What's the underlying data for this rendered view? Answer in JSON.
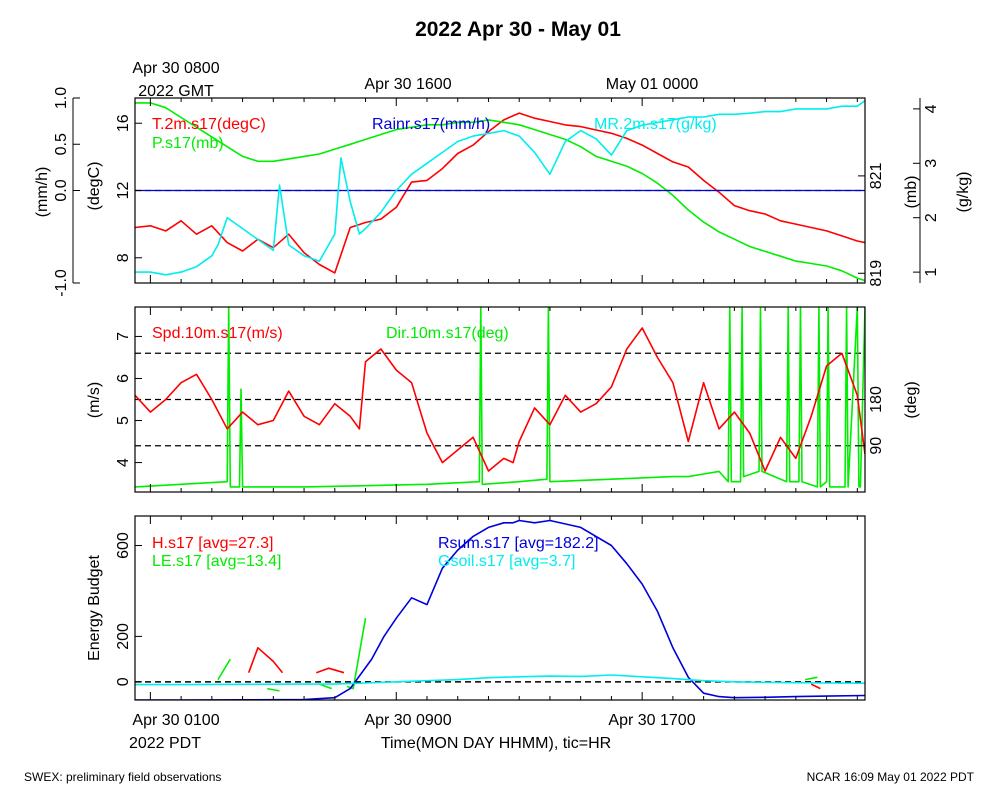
{
  "title": "2022 Apr 30 - May 01",
  "footer": {
    "left": "SWEX: preliminary field observations",
    "right": "NCAR 16:09 May 01 2022 PDT"
  },
  "top_time_axis": {
    "labels": [
      "Apr 30 0800",
      "Apr 30 1600",
      "May 01 0000"
    ],
    "start_suffix": "2022 GMT"
  },
  "bottom_time_axis": {
    "labels": [
      "Apr 30 0100",
      "Apr 30 0900",
      "Apr 30 1700"
    ],
    "start_suffix": "2022 PDT",
    "xlabel": "Time(MON DAY HHMM), tic=HR"
  },
  "colors": {
    "red": "#ff0000",
    "green": "#00ee00",
    "blue": "#0000dd",
    "cyan": "#00eeee",
    "axis": "#000000"
  },
  "chart_data": [
    {
      "type": "line",
      "panel": "top",
      "x_unit": "hours since Apr 30 0000 PDT",
      "xlim": [
        0.5,
        24.25
      ],
      "left_axes": [
        {
          "label": "(mm/h)",
          "ylim": [
            -1.0,
            1.0
          ],
          "ticks": [
            "-1.0",
            "0.0",
            "0.5",
            "1.0"
          ],
          "tick_values": [
            -1.0,
            0.0,
            0.5,
            1.0
          ]
        },
        {
          "label": "(degC)",
          "ylim": [
            6.5,
            17.5
          ],
          "ticks": [
            "8",
            "12",
            "16"
          ],
          "tick_values": [
            8,
            12,
            16
          ]
        }
      ],
      "right_axes": [
        {
          "label": "(mb)",
          "ylim": [
            818.8,
            822.6
          ],
          "ticks": [
            "819",
            "821"
          ],
          "tick_values": [
            819,
            821
          ]
        },
        {
          "label": "(g/kg)",
          "ylim": [
            0.8,
            4.2
          ],
          "ticks": [
            "1",
            "2",
            "3",
            "4"
          ],
          "tick_values": [
            1,
            2,
            3,
            4
          ]
        }
      ],
      "series": [
        {
          "name": "T.2m.s17(degC)",
          "color": "red",
          "axis": "(degC)",
          "x": [
            0.5,
            1,
            1.5,
            2,
            2.5,
            3,
            3.5,
            4,
            4.5,
            5,
            5.5,
            6,
            6.5,
            7,
            7.5,
            8,
            8.5,
            9,
            9.5,
            10,
            10.5,
            11,
            11.5,
            12,
            12.5,
            13,
            13.5,
            14,
            14.5,
            15,
            15.5,
            16,
            16.5,
            17,
            17.5,
            18,
            18.5,
            19,
            19.5,
            20,
            20.5,
            21,
            21.5,
            22,
            22.5,
            23,
            23.5,
            24,
            24.25
          ],
          "y": [
            9.8,
            9.9,
            9.6,
            10.2,
            9.4,
            9.9,
            8.9,
            8.4,
            9.1,
            8.6,
            9.4,
            8.3,
            7.6,
            7.1,
            9.8,
            10.1,
            10.3,
            11.0,
            12.5,
            12.6,
            13.3,
            14.2,
            14.7,
            15.5,
            16.2,
            16.6,
            16.3,
            16.1,
            15.9,
            15.8,
            15.6,
            15.4,
            15.1,
            14.7,
            14.2,
            13.7,
            13.4,
            12.6,
            11.9,
            11.1,
            10.8,
            10.6,
            10.2,
            10.0,
            9.8,
            9.6,
            9.3,
            9.0,
            8.9
          ]
        },
        {
          "name": "P.s17(mb)",
          "color": "green",
          "axis": "(mb)",
          "x": [
            0.5,
            1,
            1.5,
            2,
            2.5,
            3,
            3.5,
            4,
            4.5,
            5,
            5.5,
            6,
            6.5,
            7,
            7.5,
            8,
            8.5,
            9,
            9.5,
            10,
            10.5,
            11,
            11.5,
            12,
            12.5,
            13,
            13.5,
            14,
            14.5,
            15,
            15.5,
            16,
            16.5,
            17,
            17.5,
            18,
            18.5,
            19,
            19.5,
            20,
            20.5,
            21,
            21.5,
            22,
            22.5,
            23,
            23.5,
            24,
            24.25
          ],
          "y": [
            822.5,
            822.5,
            822.4,
            822.2,
            822.0,
            821.8,
            821.6,
            821.4,
            821.3,
            821.3,
            821.35,
            821.4,
            821.45,
            821.55,
            821.65,
            821.75,
            821.85,
            821.95,
            822.0,
            822.05,
            822.05,
            822.1,
            822.1,
            822.15,
            822.1,
            822.05,
            821.95,
            821.85,
            821.75,
            821.6,
            821.4,
            821.3,
            821.2,
            821.05,
            820.85,
            820.6,
            820.3,
            820.05,
            819.85,
            819.7,
            819.55,
            819.45,
            819.35,
            819.25,
            819.2,
            819.15,
            819.05,
            818.9,
            818.85
          ]
        },
        {
          "name": "Rainr.s17(mm/h)",
          "color": "blue",
          "axis": "(mm/h)",
          "x": [
            0.5,
            24.25
          ],
          "y": [
            0.0,
            0.0
          ]
        },
        {
          "name": "MR.2m.s17(g/kg)",
          "color": "cyan",
          "axis": "(g/kg)",
          "x": [
            0.5,
            1,
            1.5,
            2,
            2.5,
            3,
            3.2,
            3.5,
            4,
            4.5,
            5,
            5.2,
            5.5,
            6,
            6.5,
            7,
            7.2,
            7.5,
            7.8,
            8,
            8.5,
            9,
            9.5,
            10,
            10.5,
            11,
            11.5,
            12,
            12.5,
            13,
            13.5,
            14,
            14.5,
            15,
            15.5,
            16,
            16.5,
            17,
            17.5,
            18,
            18.5,
            19,
            19.5,
            20,
            20.5,
            21,
            21.5,
            22,
            22.5,
            23,
            23.5,
            24,
            24.25
          ],
          "y": [
            1.0,
            1.0,
            0.95,
            1.0,
            1.1,
            1.3,
            1.5,
            2.0,
            1.8,
            1.6,
            1.4,
            2.6,
            1.5,
            1.3,
            1.2,
            1.7,
            3.1,
            2.3,
            1.7,
            1.8,
            2.1,
            2.5,
            2.8,
            3.0,
            3.2,
            3.4,
            3.5,
            3.55,
            3.6,
            3.5,
            3.2,
            2.8,
            3.4,
            3.6,
            3.45,
            3.15,
            3.6,
            3.7,
            3.75,
            3.8,
            3.85,
            3.85,
            3.9,
            3.9,
            3.92,
            3.95,
            3.95,
            4.0,
            4.0,
            4.0,
            4.05,
            4.05,
            4.15
          ]
        }
      ]
    },
    {
      "type": "line",
      "panel": "middle",
      "x_unit": "hours since Apr 30 0000 PDT",
      "xlim": [
        0.5,
        24.25
      ],
      "left_axes": [
        {
          "label": "(m/s)",
          "ylim": [
            3.3,
            7.7
          ],
          "ticks": [
            "4",
            "5",
            "6",
            "7"
          ],
          "tick_values": [
            4,
            5,
            6,
            7
          ]
        }
      ],
      "right_axes": [
        {
          "label": "(deg)",
          "ylim": [
            0,
            360
          ],
          "ticks": [
            "90",
            "180"
          ],
          "tick_values": [
            90,
            180
          ]
        }
      ],
      "reference_lines_deg": [
        90,
        180,
        270
      ],
      "series": [
        {
          "name": "Spd.10m.s17(m/s)",
          "color": "red",
          "axis": "(m/s)",
          "x": [
            0.5,
            1,
            1.5,
            2,
            2.5,
            3,
            3.5,
            4,
            4.5,
            5,
            5.5,
            6,
            6.5,
            7,
            7.5,
            7.8,
            8,
            8.5,
            9,
            9.5,
            10,
            10.5,
            11,
            11.5,
            12,
            12.5,
            12.8,
            13,
            13.5,
            14,
            14.5,
            15,
            15.5,
            16,
            16.5,
            17,
            17.5,
            18,
            18.5,
            19,
            19.5,
            20,
            20.5,
            21,
            21.5,
            22,
            22.5,
            23,
            23.5,
            24,
            24.25
          ],
          "y": [
            5.6,
            5.2,
            5.5,
            5.9,
            6.1,
            5.5,
            4.8,
            5.2,
            4.9,
            5.0,
            5.7,
            5.1,
            4.9,
            5.4,
            5.1,
            4.8,
            6.4,
            6.7,
            6.2,
            5.9,
            4.7,
            4.0,
            4.3,
            4.6,
            3.8,
            4.1,
            4.0,
            4.5,
            5.3,
            4.9,
            5.6,
            5.2,
            5.4,
            5.8,
            6.7,
            7.2,
            6.5,
            5.9,
            4.5,
            5.9,
            4.8,
            5.2,
            4.7,
            3.8,
            4.6,
            4.1,
            5.1,
            6.3,
            6.6,
            5.6,
            4.2
          ]
        },
        {
          "name": "Dir.10m.s17(deg)",
          "color": "green",
          "axis": "(deg)",
          "x": [
            0.5,
            2,
            3.5,
            3.55,
            3.6,
            3.9,
            3.95,
            4.0,
            6,
            7.8,
            10,
            11.7,
            11.75,
            11.8,
            13,
            13.9,
            13.95,
            14.0,
            16,
            18,
            18.5,
            19,
            19.5,
            19.8,
            19.85,
            19.9,
            20.2,
            20.25,
            20.3,
            20.8,
            20.85,
            20.9,
            21.7,
            21.75,
            21.8,
            22.1,
            22.15,
            22.2,
            22.7,
            22.75,
            22.8,
            23.0,
            23.05,
            23.1,
            23.6,
            23.65,
            23.7,
            24.0,
            24.05,
            24.1,
            24.25
          ],
          "y": [
            10,
            15,
            20,
            360,
            10,
            10,
            200,
            10,
            10,
            12,
            15,
            20,
            360,
            15,
            20,
            25,
            360,
            20,
            25,
            30,
            30,
            35,
            40,
            20,
            360,
            20,
            20,
            360,
            30,
            40,
            360,
            40,
            20,
            360,
            20,
            20,
            360,
            20,
            10,
            360,
            10,
            20,
            360,
            10,
            10,
            360,
            10,
            360,
            10,
            10,
            360
          ]
        }
      ]
    },
    {
      "type": "line",
      "panel": "bottom",
      "x_unit": "hours since Apr 30 0000 PDT",
      "xlim": [
        0.5,
        24.25
      ],
      "ylabel": "Energy Budget",
      "ylim": [
        -80,
        730
      ],
      "ticks": [
        "0",
        "200",
        "600"
      ],
      "tick_values": [
        0,
        200,
        600
      ],
      "reference_line": 0,
      "series": [
        {
          "name": "H.s17",
          "avg_label": "[avg=27.3]",
          "color": "red",
          "segments": [
            {
              "x": [
                4.2,
                4.5,
                5.0,
                5.3
              ],
              "y": [
                40,
                150,
                90,
                40
              ]
            },
            {
              "x": [
                6.4,
                6.8,
                7.3
              ],
              "y": [
                40,
                60,
                40
              ]
            },
            {
              "x": [
                22.5,
                22.8
              ],
              "y": [
                -10,
                -30
              ]
            }
          ]
        },
        {
          "name": "LE.s17",
          "avg_label": "[avg=13.4]",
          "color": "green",
          "segments": [
            {
              "x": [
                3.2,
                3.6
              ],
              "y": [
                10,
                100
              ]
            },
            {
              "x": [
                4.8,
                5.2
              ],
              "y": [
                -30,
                -40
              ]
            },
            {
              "x": [
                6.5,
                6.9
              ],
              "y": [
                -10,
                -30
              ]
            },
            {
              "x": [
                7.4,
                7.6,
                8.0
              ],
              "y": [
                -20,
                -30,
                280
              ]
            },
            {
              "x": [
                22.3,
                22.7
              ],
              "y": [
                10,
                20
              ]
            }
          ]
        },
        {
          "name": "Rsum.s17",
          "avg_label": "[avg=182.2]",
          "color": "blue",
          "x": [
            0.5,
            2,
            4,
            6,
            7,
            7.5,
            8.2,
            8.6,
            9.0,
            9.5,
            10.0,
            10.5,
            11,
            11.5,
            12,
            12.5,
            12.8,
            13.0,
            13.5,
            14,
            15,
            16,
            16.5,
            17,
            17.5,
            18.0,
            18.5,
            19,
            19.5,
            20,
            21,
            22,
            23,
            24.25
          ],
          "y": [
            -80,
            -80,
            -79,
            -78,
            -70,
            -30,
            100,
            200,
            280,
            370,
            340,
            500,
            580,
            640,
            680,
            700,
            700,
            710,
            700,
            710,
            680,
            600,
            520,
            430,
            310,
            150,
            20,
            -50,
            -65,
            -70,
            -68,
            -65,
            -63,
            -60
          ]
        },
        {
          "name": "Gsoil.s17",
          "avg_label": "[avg=3.7]",
          "color": "cyan",
          "x": [
            0.5,
            2,
            4,
            6,
            7,
            8,
            9,
            10,
            11,
            12,
            13,
            14,
            15,
            16,
            17,
            18,
            19,
            20,
            21,
            22,
            23,
            24.25
          ],
          "y": [
            -12,
            -12,
            -11,
            -10,
            -10,
            -5,
            0,
            5,
            10,
            18,
            22,
            25,
            24,
            30,
            22,
            14,
            5,
            0,
            -2,
            -4,
            -5,
            -6
          ]
        }
      ]
    }
  ]
}
